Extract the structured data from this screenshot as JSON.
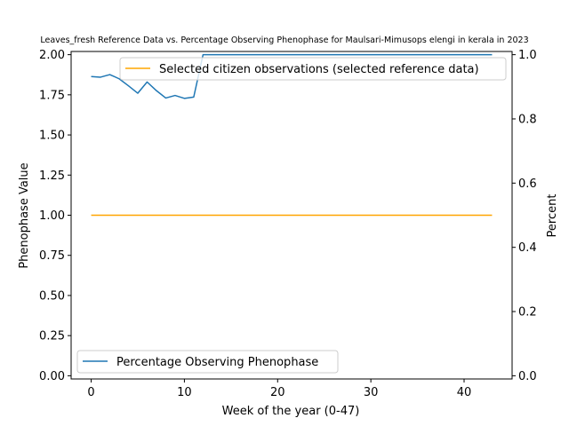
{
  "chart_data": {
    "type": "line",
    "title": "Leaves_fresh Reference Data vs. Percentage Observing Phenophase for Maulsari-Mimusops elengi in kerala in 2023",
    "xlabel": "Week of the year (0-47)",
    "ylabel_left": "Phenophase Value",
    "ylabel_right": "Percent",
    "xlim": [
      -2.15,
      45.15
    ],
    "ylim_left": [
      -0.02,
      2.02
    ],
    "ylim_right": [
      -0.01,
      1.01
    ],
    "x_ticks": [
      0,
      10,
      20,
      30,
      40
    ],
    "y_left_ticks": [
      "0.00",
      "0.25",
      "0.50",
      "0.75",
      "1.00",
      "1.25",
      "1.50",
      "1.75",
      "2.00"
    ],
    "y_right_ticks": [
      "0.0",
      "0.2",
      "0.4",
      "0.6",
      "0.8",
      "1.0"
    ],
    "grid": false,
    "series": [
      {
        "name": "Selected citizen observations (selected reference data)",
        "axis": "left",
        "color": "#ffa500",
        "legend_position": "upper-right",
        "x": [
          0,
          43
        ],
        "y": [
          1.0,
          1.0
        ]
      },
      {
        "name": "Percentage Observing Phenophase",
        "axis": "right",
        "color": "#1f77b4",
        "legend_position": "lower-left",
        "x": [
          0,
          1,
          2,
          3,
          4,
          5,
          6,
          7,
          8,
          9,
          10,
          11,
          12,
          13,
          14,
          15,
          16,
          17,
          18,
          19,
          20,
          21,
          22,
          23,
          24,
          25,
          26,
          27,
          28,
          29,
          30,
          31,
          32,
          33,
          34,
          35,
          36,
          37,
          38,
          39,
          40,
          41,
          42,
          43
        ],
        "y": [
          0.932,
          0.93,
          0.938,
          0.925,
          0.903,
          0.88,
          0.915,
          0.888,
          0.865,
          0.873,
          0.864,
          0.868,
          1.0,
          1.0,
          1.0,
          1.0,
          1.0,
          1.0,
          1.0,
          1.0,
          1.0,
          1.0,
          1.0,
          1.0,
          1.0,
          1.0,
          1.0,
          1.0,
          1.0,
          1.0,
          1.0,
          1.0,
          1.0,
          1.0,
          1.0,
          1.0,
          1.0,
          1.0,
          1.0,
          1.0,
          1.0,
          1.0,
          1.0,
          1.0
        ]
      }
    ]
  }
}
